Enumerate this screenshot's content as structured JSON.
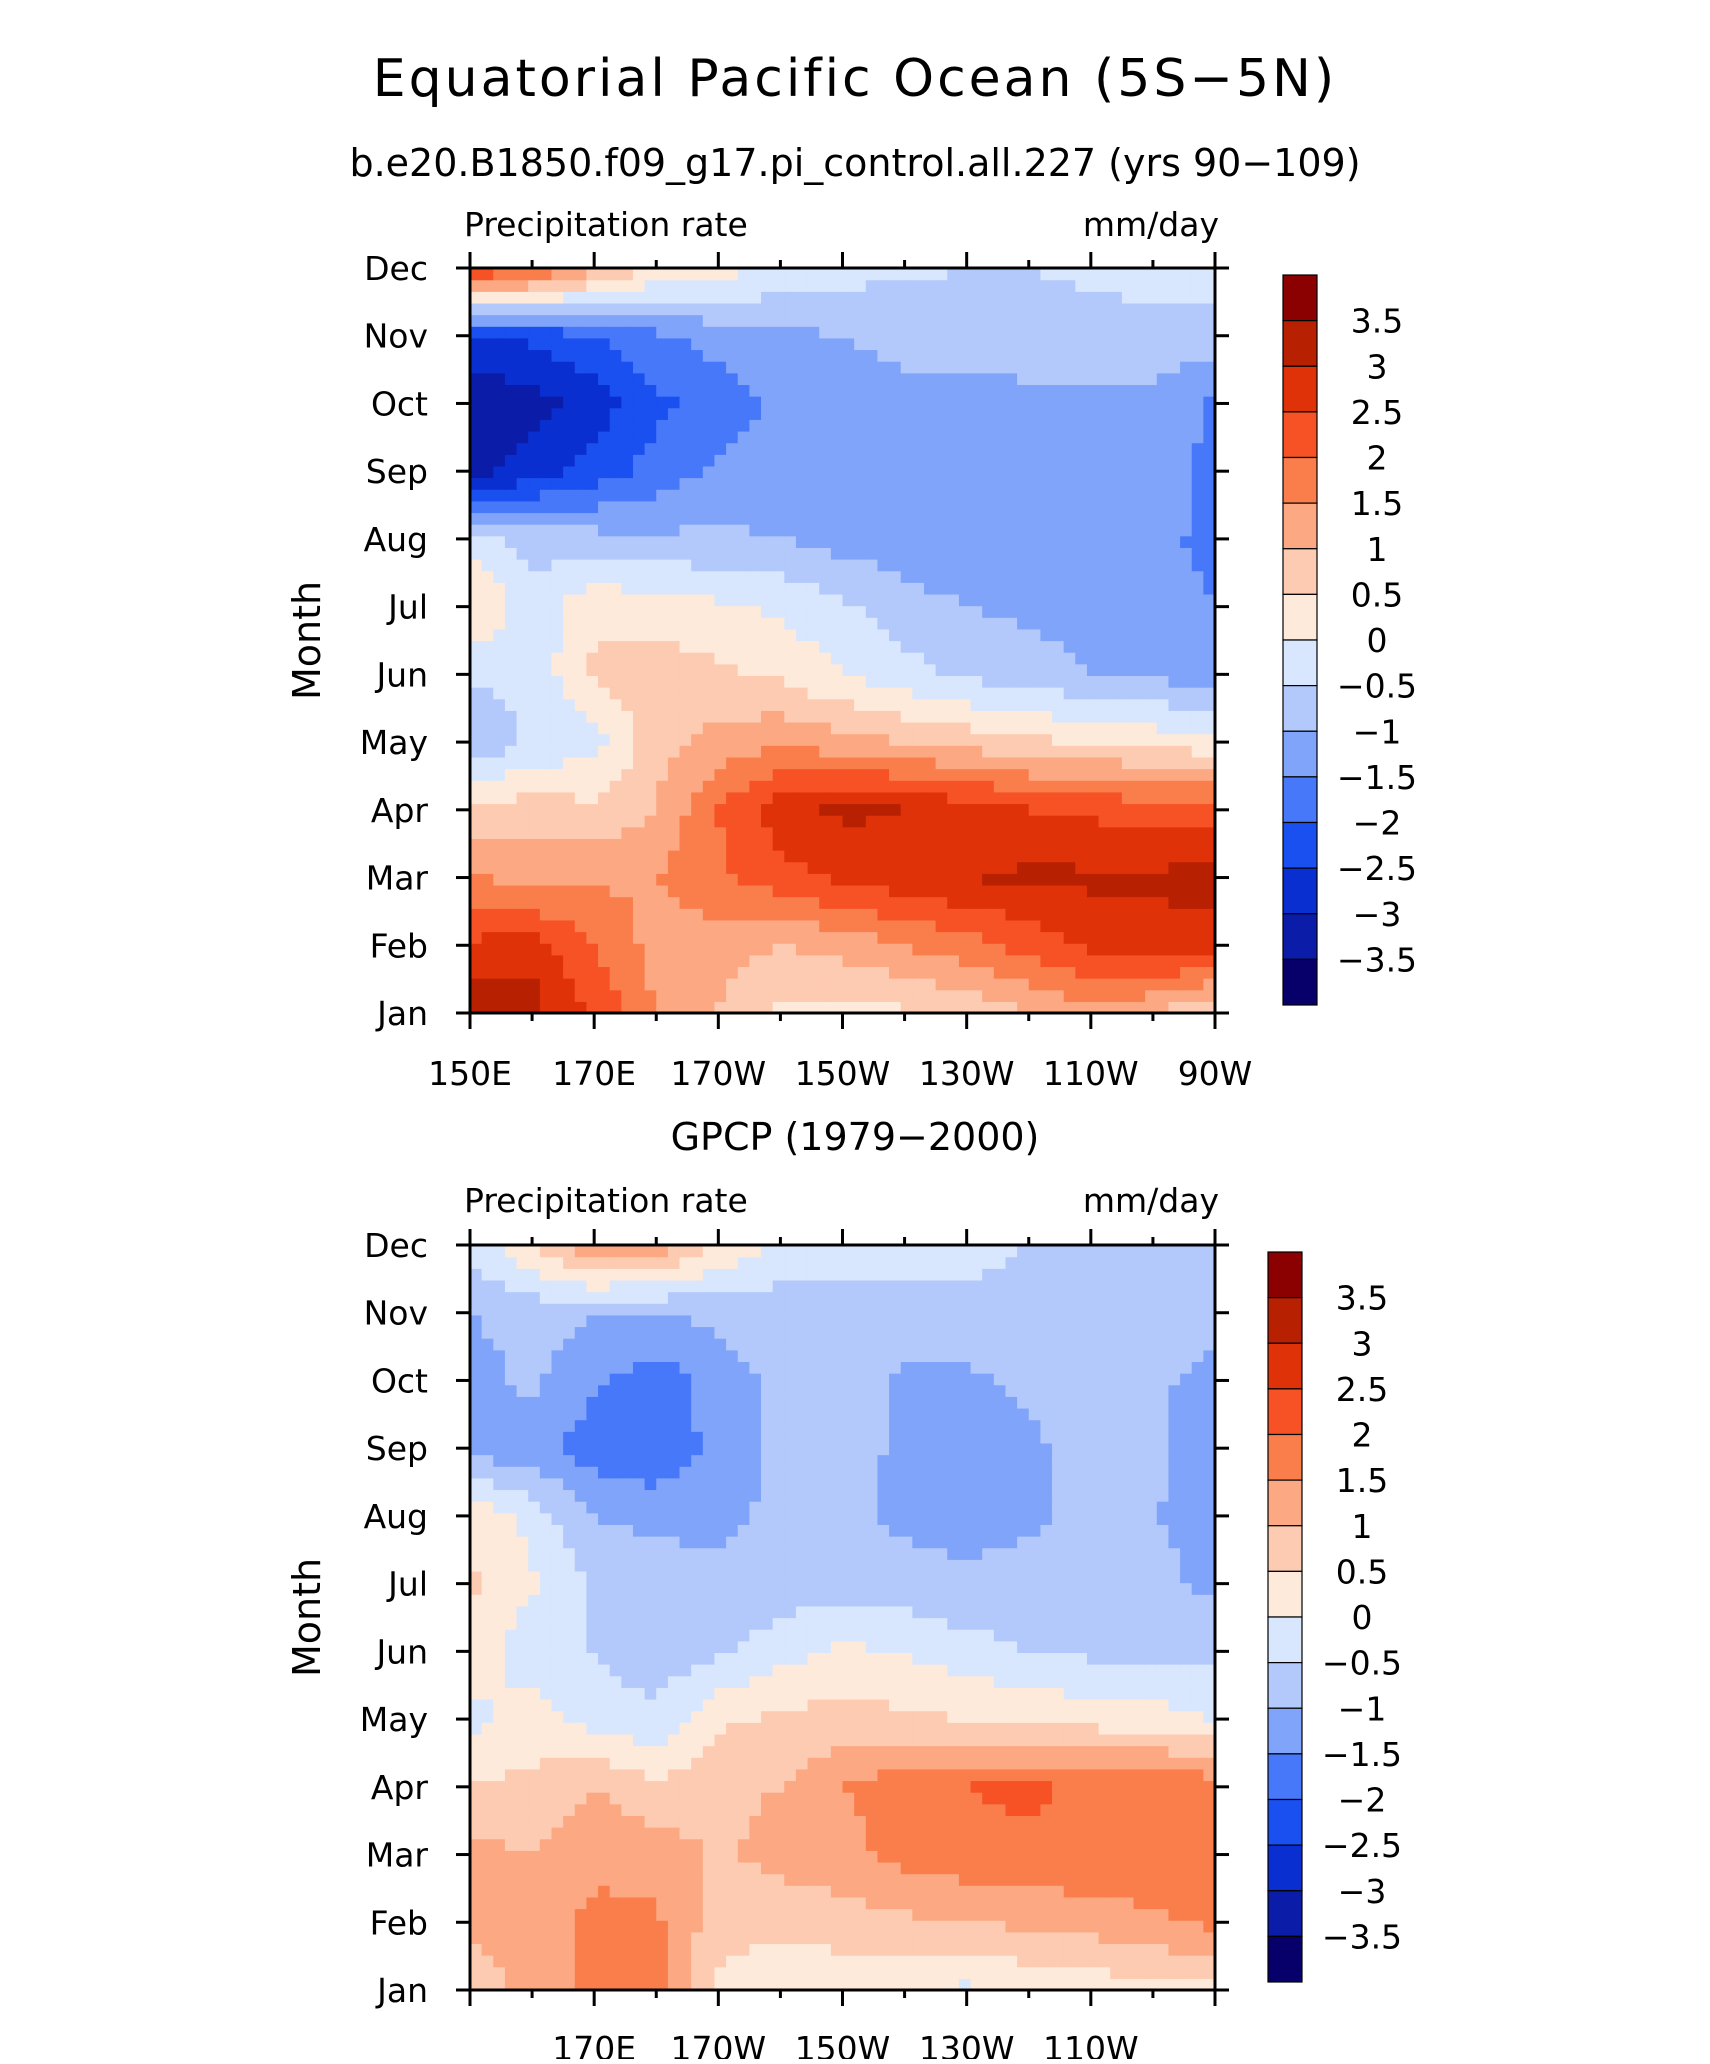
{
  "figure": {
    "title": "Equatorial Pacific Ocean (5S−5N)",
    "subtitle": "b.e20.B1850.f09_g17.pi_control.all.227 (yrs 90−109)"
  },
  "chart_data": [
    {
      "type": "heatmap",
      "subtitle": "",
      "variable_label": "Precipitation rate",
      "units_label": "mm/day",
      "ylabel": "Month",
      "x_ticklabels": [
        "150E",
        "170E",
        "170W",
        "150W",
        "130W",
        "110W",
        "90W"
      ],
      "y_ticklabels": [
        "Jan",
        "Feb",
        "Mar",
        "Apr",
        "May",
        "Jun",
        "Jul",
        "Aug",
        "Sep",
        "Oct",
        "Nov",
        "Dec"
      ],
      "xlim_deg_east": [
        150,
        270
      ],
      "levels": [
        -3.5,
        -3,
        -2.5,
        -2,
        -1.5,
        -1,
        -0.5,
        0,
        0.5,
        1,
        1.5,
        2,
        2.5,
        3,
        3.5
      ],
      "level_labels": [
        "3.5",
        "3",
        "2.5",
        "2",
        "1.5",
        "1",
        "0.5",
        "0",
        "−0.5",
        "−1",
        "−1.5",
        "−2",
        "−2.5",
        "−3",
        "−3.5"
      ],
      "colors": [
        "#08006a",
        "#0a1ca8",
        "#0a2fd0",
        "#1a4ff0",
        "#4878fa",
        "#80a4fa",
        "#b3c9fb",
        "#d8e7fd",
        "#feeada",
        "#fdcbb1",
        "#fca882",
        "#fa7e4c",
        "#f75225",
        "#e03208",
        "#b82002",
        "#8b0000"
      ],
      "x_deg_east": [
        150,
        160,
        170,
        180,
        190,
        200,
        210,
        220,
        230,
        240,
        250,
        260,
        270
      ],
      "months": [
        "Jan",
        "Feb",
        "Mar",
        "Apr",
        "May",
        "Jun",
        "Jul",
        "Aug",
        "Sep",
        "Oct",
        "Nov",
        "Dec"
      ],
      "anomaly_mm_per_day": [
        [
          3.6,
          3.2,
          2.4,
          1.5,
          1.0,
          0.4,
          0.3,
          0.4,
          0.6,
          1.0,
          1.3,
          1.0,
          0.4
        ],
        [
          2.6,
          2.8,
          2.0,
          1.3,
          1.2,
          1.0,
          1.2,
          1.5,
          1.8,
          2.2,
          2.6,
          2.8,
          2.8
        ],
        [
          1.6,
          1.2,
          1.4,
          1.5,
          1.9,
          2.3,
          2.6,
          2.8,
          3.0,
          3.1,
          3.1,
          3.1,
          3.2
        ],
        [
          0.6,
          0.8,
          0.6,
          1.0,
          2.0,
          2.8,
          3.1,
          3.0,
          2.8,
          2.5,
          2.4,
          2.3,
          2.2
        ],
        [
          -1.0,
          -0.4,
          -0.2,
          0.8,
          1.2,
          1.4,
          1.2,
          1.0,
          0.8,
          0.6,
          0.5,
          0.3,
          0.2
        ],
        [
          -0.4,
          -0.4,
          0.6,
          0.8,
          0.6,
          0.4,
          0.0,
          -0.3,
          -0.6,
          -0.8,
          -1.0,
          -1.0,
          -1.5
        ],
        [
          0.6,
          -0.3,
          0.4,
          0.2,
          0.1,
          -0.1,
          -0.4,
          -0.8,
          -1.0,
          -1.1,
          -1.2,
          -1.3,
          -1.5
        ],
        [
          -0.2,
          -0.7,
          -0.8,
          -0.9,
          -0.9,
          -1.0,
          -1.2,
          -1.3,
          -1.4,
          -1.4,
          -1.3,
          -1.4,
          -1.6
        ],
        [
          -3.2,
          -2.8,
          -2.3,
          -1.8,
          -1.4,
          -1.2,
          -1.2,
          -1.1,
          -1.1,
          -1.1,
          -1.1,
          -1.1,
          -1.7
        ],
        [
          -3.5,
          -3.2,
          -2.8,
          -2.1,
          -1.8,
          -1.4,
          -1.2,
          -1.1,
          -1.1,
          -1.1,
          -1.1,
          -1.1,
          -1.6
        ],
        [
          -2.6,
          -2.4,
          -2.0,
          -1.6,
          -1.3,
          -1.1,
          -1.0,
          -0.9,
          -0.9,
          -0.8,
          -0.7,
          -0.7,
          -0.7
        ],
        [
          2.6,
          2.2,
          1.2,
          0.5,
          0.2,
          -0.1,
          -0.3,
          -0.4,
          -0.5,
          -0.5,
          -0.4,
          -0.3,
          -0.2
        ]
      ]
    },
    {
      "type": "heatmap",
      "subtitle": "GPCP (1979−2000)",
      "variable_label": "Precipitation rate",
      "units_label": "mm/day",
      "ylabel": "Month",
      "x_ticklabels": [
        "",
        "170E",
        "170W",
        "150W",
        "130W",
        "110W",
        ""
      ],
      "y_ticklabels": [
        "Jan",
        "Feb",
        "Mar",
        "Apr",
        "May",
        "Jun",
        "Jul",
        "Aug",
        "Sep",
        "Oct",
        "Nov",
        "Dec"
      ],
      "xlim_deg_east": [
        150,
        270
      ],
      "levels": [
        -3.5,
        -3,
        -2.5,
        -2,
        -1.5,
        -1,
        -0.5,
        0,
        0.5,
        1,
        1.5,
        2,
        2.5,
        3,
        3.5
      ],
      "level_labels": [
        "3.5",
        "3",
        "2.5",
        "2",
        "1.5",
        "1",
        "0.5",
        "0",
        "−0.5",
        "−1",
        "−1.5",
        "−2",
        "−2.5",
        "−3",
        "−3.5"
      ],
      "colors": [
        "#08006a",
        "#0a1ca8",
        "#0a2fd0",
        "#1a4ff0",
        "#4878fa",
        "#80a4fa",
        "#b3c9fb",
        "#d8e7fd",
        "#feeada",
        "#fdcbb1",
        "#fca882",
        "#fa7e4c",
        "#f75225",
        "#e03208",
        "#b82002",
        "#8b0000"
      ],
      "x_deg_east": [
        150,
        160,
        170,
        180,
        190,
        200,
        210,
        220,
        230,
        240,
        250,
        260,
        270
      ],
      "months": [
        "Jan",
        "Feb",
        "Mar",
        "Apr",
        "May",
        "Jun",
        "Jul",
        "Aug",
        "Sep",
        "Oct",
        "Nov",
        "Dec"
      ],
      "anomaly_mm_per_day": [
        [
          0.6,
          1.2,
          1.6,
          1.8,
          0.4,
          0.2,
          0.1,
          0.0,
          -0.1,
          0.1,
          0.2,
          0.3,
          0.4
        ],
        [
          1.1,
          1.3,
          1.6,
          1.6,
          0.7,
          0.6,
          0.8,
          0.9,
          1.0,
          1.1,
          1.2,
          1.4,
          1.6
        ],
        [
          1.2,
          1.0,
          1.4,
          1.3,
          0.9,
          1.2,
          1.3,
          1.7,
          1.8,
          1.9,
          1.9,
          1.9,
          1.8
        ],
        [
          0.6,
          0.6,
          1.0,
          0.6,
          0.9,
          1.0,
          1.5,
          1.8,
          2.0,
          2.1,
          1.9,
          2.0,
          1.8
        ],
        [
          -0.2,
          0.3,
          -0.2,
          -0.4,
          0.4,
          0.6,
          0.7,
          0.6,
          0.5,
          0.4,
          0.3,
          0.2,
          0.0
        ],
        [
          0.4,
          -0.4,
          -0.5,
          -0.8,
          -0.6,
          -0.2,
          0.1,
          0.0,
          -0.3,
          -0.5,
          -0.6,
          -0.6,
          -0.6
        ],
        [
          0.6,
          0.1,
          -0.6,
          -0.8,
          -0.9,
          -0.8,
          -0.7,
          -0.8,
          -0.9,
          -0.8,
          -0.8,
          -0.9,
          -1.1
        ],
        [
          0.4,
          -0.2,
          -1.0,
          -1.1,
          -1.1,
          -0.9,
          -0.9,
          -1.1,
          -1.2,
          -1.1,
          -0.8,
          -1.0,
          -1.1
        ],
        [
          -1.2,
          -1.3,
          -1.8,
          -2.0,
          -1.3,
          -0.9,
          -0.8,
          -1.1,
          -1.2,
          -1.1,
          -0.8,
          -0.9,
          -1.2
        ],
        [
          -1.2,
          -0.9,
          -1.4,
          -1.8,
          -1.2,
          -0.9,
          -0.8,
          -1.1,
          -1.1,
          -0.9,
          -0.7,
          -0.9,
          -1.2
        ],
        [
          -1.0,
          -0.8,
          -1.0,
          -1.0,
          -0.9,
          -0.8,
          -0.7,
          -0.6,
          -0.6,
          -0.6,
          -0.6,
          -0.6,
          -0.8
        ],
        [
          -0.4,
          0.5,
          1.6,
          1.3,
          0.5,
          -0.1,
          -0.3,
          -0.4,
          -0.4,
          -0.5,
          -0.5,
          -0.6,
          -0.6
        ]
      ]
    }
  ]
}
